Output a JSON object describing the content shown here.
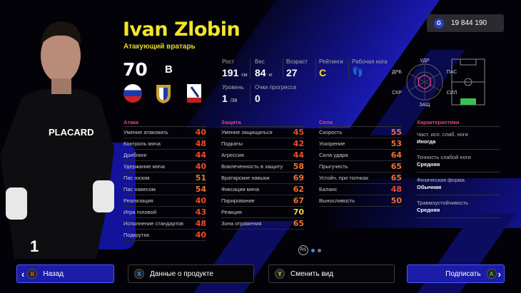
{
  "currency": {
    "icon": "gp-coin-icon",
    "symbol": "G",
    "amount": "19 844 190"
  },
  "player": {
    "name": "Ivan Zlobin",
    "position": "Атакующий вратарь",
    "overall": "70",
    "grade": "B",
    "nationality": "russia-flag",
    "club": "club-crest",
    "league": "league-badge"
  },
  "info": {
    "height": {
      "label": "Рост",
      "value": "191",
      "unit": "см"
    },
    "weight": {
      "label": "Вес",
      "value": "84",
      "unit": "кг"
    },
    "age": {
      "label": "Возраст",
      "value": "27"
    },
    "ratings": {
      "label": "Рейтинги",
      "value": "C"
    },
    "foot": {
      "label": "Рабочая нога"
    },
    "level": {
      "label": "Уровень",
      "value": "1",
      "max": "/38"
    },
    "progress": {
      "label": "Очки прогресса",
      "value": "0"
    }
  },
  "radar": {
    "labels": [
      "УДР",
      "ПАС",
      "СИЛ",
      "ЗАЩ",
      "СКР",
      "ДРБ"
    ]
  },
  "attack": {
    "title": "Атака",
    "rows": [
      {
        "label": "Умение атаковать",
        "value": "40"
      },
      {
        "label": "Контроль мяча",
        "value": "48"
      },
      {
        "label": "Дриблинг",
        "value": "44"
      },
      {
        "label": "Удержание мяча",
        "value": "40"
      },
      {
        "label": "Пас низом",
        "value": "51"
      },
      {
        "label": "Пас навесом",
        "value": "54"
      },
      {
        "label": "Реализация",
        "value": "40"
      },
      {
        "label": "Игра головой",
        "value": "43"
      },
      {
        "label": "Исполнение стандартов",
        "value": "48"
      },
      {
        "label": "Подкрутка",
        "value": "40"
      }
    ]
  },
  "defense": {
    "title": "Защита",
    "rows": [
      {
        "label": "Умение защищаться",
        "value": "45"
      },
      {
        "label": "Подкаты",
        "value": "42"
      },
      {
        "label": "Агрессия",
        "value": "44"
      },
      {
        "label": "Вовлеченность в защиту",
        "value": "58"
      },
      {
        "label": "Вратарские навыки",
        "value": "69"
      },
      {
        "label": "Фиксация мяча",
        "value": "62"
      },
      {
        "label": "Парирование",
        "value": "67"
      },
      {
        "label": "Реакция",
        "value": "70"
      },
      {
        "label": "Зона отражения",
        "value": "65"
      }
    ]
  },
  "power": {
    "title": "Сила",
    "rows": [
      {
        "label": "Скорость",
        "value": "55"
      },
      {
        "label": "Ускорение",
        "value": "53"
      },
      {
        "label": "Сила удара",
        "value": "64"
      },
      {
        "label": "Прыгучесть",
        "value": "65"
      },
      {
        "label": "Устойч. при толчках",
        "value": "65"
      },
      {
        "label": "Баланс",
        "value": "48"
      },
      {
        "label": "Выносливость",
        "value": "50"
      }
    ]
  },
  "traits": {
    "title": "Характеристики",
    "rows": [
      {
        "label": "Част. исп. слаб. ноги",
        "value": "Иногда"
      },
      {
        "label": "Точность слабой ноги",
        "value": "Средняя"
      },
      {
        "label": "Физическая форма",
        "value": "Обычная"
      },
      {
        "label": "Травмоустойчивость",
        "value": "Средняя"
      }
    ]
  },
  "pager": {
    "label": "RS",
    "pages": 2,
    "current": 1
  },
  "buttons": {
    "back": {
      "label": "Назад",
      "key": "B"
    },
    "product": {
      "label": "Данные о продукте",
      "key": "X"
    },
    "view": {
      "label": "Сменить вид",
      "key": "Y"
    },
    "sign": {
      "label": "Подписать",
      "key": "A"
    }
  },
  "colors": {
    "accent": "#f2e52a",
    "low": "#f04a2a",
    "mid": "#f07030",
    "high": "#f0d040",
    "section": "#e8407a",
    "button": "#1c1ca8"
  }
}
